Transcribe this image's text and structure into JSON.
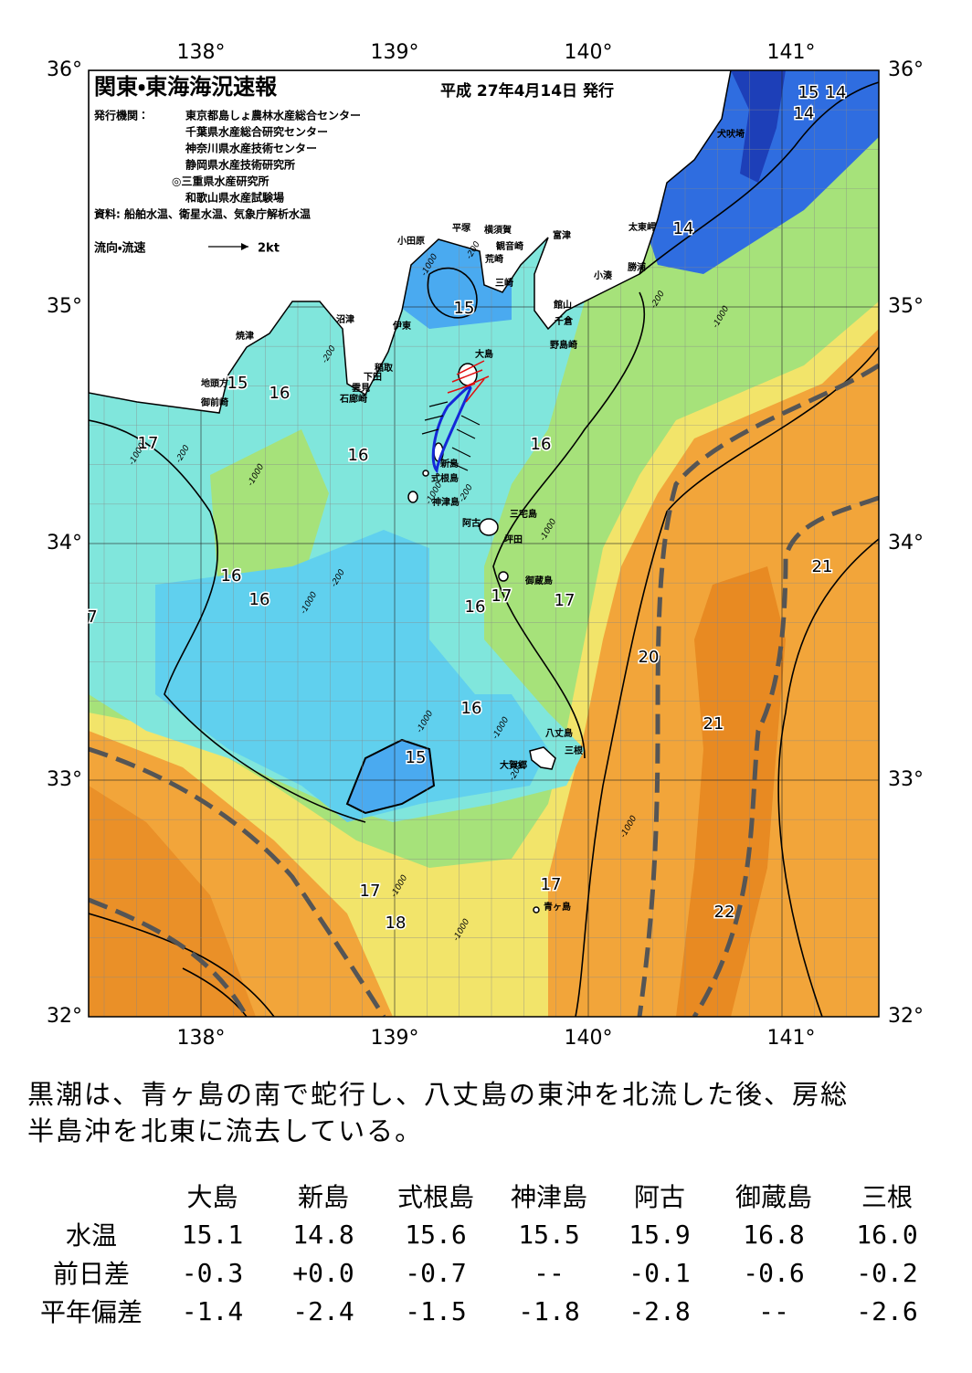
{
  "map": {
    "title": "関東・東海海況速報",
    "date": "平成 27年4月14日 発行",
    "issuer_label": "発行機関：",
    "issuers": [
      "東京都島しょ農林水産総合センター",
      "千葉県水産総合研究センター",
      "神奈川県水産技術センター",
      "静岡県水産技術研究所",
      "◎三重県水産研究所",
      "和歌山県水産試験場"
    ],
    "source": "資料: 船舶水温、衛星水温、気象庁解析水温",
    "legend_label": "流向・流速",
    "legend_speed": "2kt",
    "lon_labels": [
      "138°",
      "139°",
      "140°",
      "141°"
    ],
    "lat_labels": [
      "36°",
      "35°",
      "34°",
      "33°",
      "32°"
    ],
    "places": [
      "犬吠埼",
      "太東岬",
      "勝浦",
      "小湊",
      "富津",
      "館山",
      "千倉",
      "野島崎",
      "横須賀",
      "観音崎",
      "荒崎",
      "三崎",
      "平塚",
      "小田原",
      "沼津",
      "伊東",
      "焼津",
      "稲取",
      "下田",
      "雲見",
      "石廊崎",
      "地頭方",
      "御前崎",
      "大島",
      "新島",
      "式根島",
      "神津島",
      "三宅島",
      "阿古",
      "坪田",
      "御蔵島",
      "八丈島",
      "三根",
      "大賀郷",
      "青ヶ島"
    ],
    "temperature_labels": [
      "15",
      "14",
      "14",
      "14",
      "15",
      "15",
      "16",
      "17",
      "16",
      "16",
      "16",
      "16",
      "7",
      "16",
      "17",
      "17",
      "21",
      "20",
      "21",
      "16",
      "15",
      "17",
      "18",
      "17",
      "22"
    ],
    "depth_labels": [
      "-200",
      "-1000",
      "-200",
      "-200",
      "-1000",
      "-1000",
      "-200",
      "-1000",
      "-200",
      "-1000",
      "-1000",
      "-1000",
      "-1000",
      "-200",
      "-1000",
      "-1000",
      "-1000",
      "-200",
      "-1000"
    ]
  },
  "summary": [
    "黒潮は、青ヶ島の南で蛇行し、八丈島の東沖を北流した後、房総",
    "半島沖を北東に流去している。"
  ],
  "table": {
    "columns": [
      "大島",
      "新島",
      "式根島",
      "神津島",
      "阿古",
      "御蔵島",
      "三根"
    ],
    "rows": [
      {
        "label": "水温",
        "values": [
          "15.1",
          "14.8",
          "15.6",
          "15.5",
          "15.9",
          "16.8",
          "16.0"
        ]
      },
      {
        "label": "前日差",
        "values": [
          "-0.3",
          "+0.0",
          "-0.7",
          "--",
          "-0.1",
          "-0.6",
          "-0.2"
        ]
      },
      {
        "label": "平年偏差",
        "values": [
          "-1.4",
          "-2.4",
          "-1.5",
          "-1.8",
          "-2.8",
          "--",
          "-2.6"
        ]
      }
    ]
  }
}
